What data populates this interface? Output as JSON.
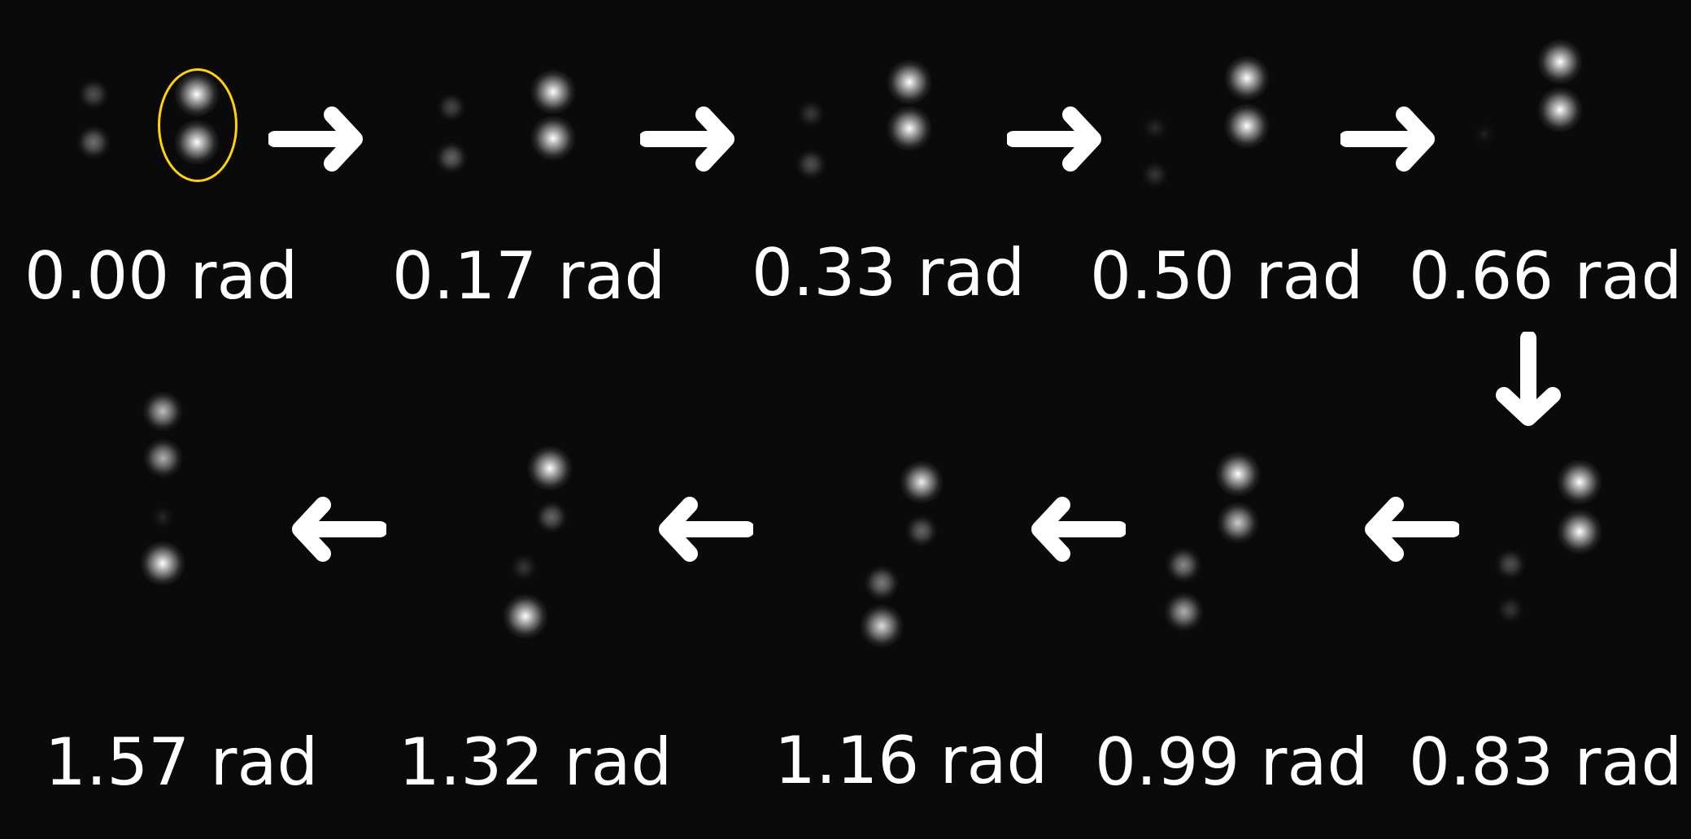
{
  "frames": [
    {
      "id": "f0",
      "label": "0.00 rad"
    },
    {
      "id": "f1",
      "label": "0.17 rad"
    },
    {
      "id": "f2",
      "label": "0.33 rad"
    },
    {
      "id": "f3",
      "label": "0.50 rad"
    },
    {
      "id": "f4",
      "label": "0.66 rad"
    },
    {
      "id": "f5",
      "label": "0.83 rad"
    },
    {
      "id": "f6",
      "label": "0.99 rad"
    },
    {
      "id": "f7",
      "label": "1.16 rad"
    },
    {
      "id": "f8",
      "label": "1.32 rad"
    },
    {
      "id": "f9",
      "label": "1.57 rad"
    }
  ],
  "arrows": [
    {
      "direction": "right",
      "icon": "arrow-right-icon"
    },
    {
      "direction": "right",
      "icon": "arrow-right-icon"
    },
    {
      "direction": "right",
      "icon": "arrow-right-icon"
    },
    {
      "direction": "right",
      "icon": "arrow-right-icon"
    },
    {
      "direction": "down",
      "icon": "arrow-down-icon"
    },
    {
      "direction": "left",
      "icon": "arrow-left-icon"
    },
    {
      "direction": "left",
      "icon": "arrow-left-icon"
    },
    {
      "direction": "left",
      "icon": "arrow-left-icon"
    },
    {
      "direction": "left",
      "icon": "arrow-left-icon"
    }
  ],
  "colors": {
    "background": "#0a0a0a",
    "spot": "#ffffff",
    "label": "#ffffff",
    "highlight": "#ffd400"
  }
}
